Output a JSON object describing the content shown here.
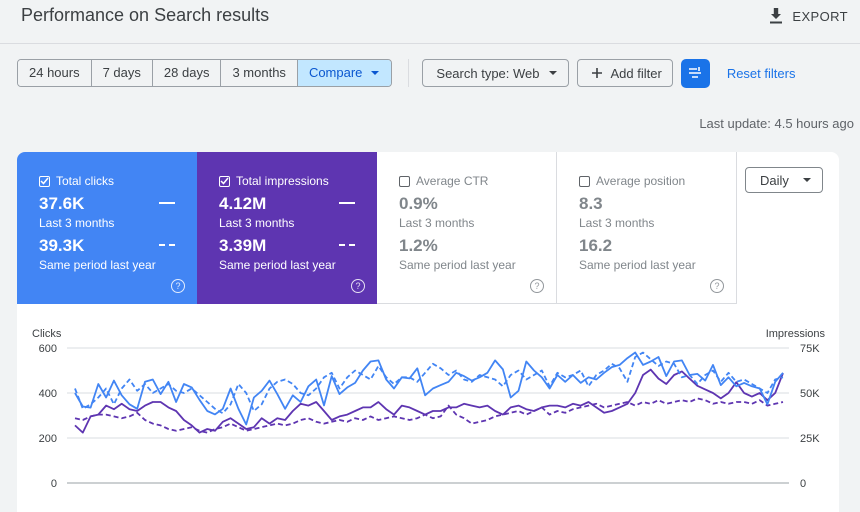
{
  "header": {
    "title": "Performance on Search results",
    "export_label": "EXPORT"
  },
  "toolbar": {
    "ranges": [
      "24 hours",
      "7 days",
      "28 days",
      "3 months"
    ],
    "compare_label": "Compare",
    "search_type_label": "Search type: Web",
    "add_filter_label": "Add filter",
    "reset_filters_label": "Reset filters"
  },
  "last_update": "Last update: 4.5 hours ago",
  "metrics": {
    "clicks": {
      "label": "Total clicks",
      "value": "37.6K",
      "period": "Last 3 months",
      "compare_value": "39.3K",
      "compare_period": "Same period last year",
      "color": "#4285f4"
    },
    "impressions": {
      "label": "Total impressions",
      "value": "4.12M",
      "period": "Last 3 months",
      "compare_value": "3.39M",
      "compare_period": "Same period last year",
      "color": "#5e35b1"
    },
    "ctr": {
      "label": "Average CTR",
      "value": "0.9%",
      "period": "Last 3 months",
      "compare_value": "1.2%",
      "compare_period": "Same period last year"
    },
    "position": {
      "label": "Average position",
      "value": "8.3",
      "period": "Last 3 months",
      "compare_value": "16.2",
      "compare_period": "Same period last year"
    }
  },
  "granularity": "Daily",
  "help_glyph": "?",
  "chart_data": {
    "type": "line",
    "ylabel_left": "Clicks",
    "ylabel_right": "Impressions",
    "yticks_left": [
      "0",
      "200",
      "400",
      "600"
    ],
    "yticks_right": [
      "0",
      "25K",
      "50K",
      "75K"
    ],
    "ylim_left": [
      0,
      600
    ],
    "ylim_right": [
      0,
      75000
    ],
    "grid": true,
    "series": [
      {
        "axis": "left",
        "style": "solid",
        "color": "#4285f4",
        "values": [
          400,
          340,
          335,
          440,
          380,
          455,
          390,
          350,
          330,
          450,
          460,
          395,
          450,
          360,
          440,
          425,
          370,
          320,
          305,
          330,
          420,
          330,
          260,
          380,
          410,
          455,
          395,
          330,
          390,
          360,
          430,
          460,
          345,
          475,
          395,
          425,
          445,
          500,
          540,
          545,
          460,
          420,
          470,
          465,
          510,
          390,
          420,
          435,
          450,
          490,
          475,
          455,
          470,
          490,
          545,
          505,
          380,
          410,
          540,
          500,
          470,
          420,
          480,
          450,
          480,
          445,
          470,
          460,
          490,
          515,
          525,
          555,
          580,
          525,
          540,
          560,
          475,
          540,
          545,
          480,
          485,
          455,
          525,
          435,
          470,
          430,
          445,
          430,
          420,
          350,
          450,
          490
        ]
      },
      {
        "axis": "left",
        "style": "dashed",
        "color": "#4285f4",
        "values": [
          420,
          330,
          350,
          380,
          420,
          350,
          420,
          460,
          410,
          440,
          400,
          420,
          440,
          410,
          400,
          420,
          390,
          360,
          330,
          310,
          350,
          440,
          400,
          320,
          350,
          420,
          450,
          460,
          440,
          400,
          390,
          420,
          470,
          490,
          420,
          470,
          500,
          480,
          460,
          520,
          470,
          440,
          470,
          470,
          450,
          490,
          530,
          510,
          480,
          500,
          460,
          450,
          480,
          470,
          460,
          430,
          480,
          500,
          460,
          480,
          500,
          430,
          490,
          470,
          480,
          500,
          430,
          480,
          500,
          530,
          510,
          450,
          560,
          580,
          550,
          520,
          540,
          530,
          470,
          480,
          440,
          480,
          500,
          450,
          490,
          450,
          460,
          440,
          420,
          400,
          460,
          470
        ]
      },
      {
        "axis": "right",
        "style": "solid",
        "color": "#5e35b1",
        "values": [
          32000,
          28000,
          37000,
          38000,
          43000,
          41000,
          44000,
          41000,
          40000,
          43000,
          45000,
          45000,
          42000,
          40000,
          35000,
          32000,
          28000,
          30000,
          29000,
          34000,
          36000,
          33000,
          30000,
          31000,
          36000,
          33000,
          36000,
          35000,
          40000,
          44000,
          43000,
          45000,
          40000,
          35000,
          37000,
          38000,
          40000,
          42000,
          42000,
          45000,
          41000,
          38000,
          43000,
          42000,
          40000,
          38000,
          40000,
          40000,
          42000,
          42000,
          44000,
          43000,
          42000,
          43000,
          40000,
          38000,
          42000,
          43000,
          41000,
          40000,
          42000,
          43000,
          43000,
          42000,
          44000,
          43000,
          45000,
          42000,
          39000,
          40000,
          42000,
          44000,
          50000,
          60000,
          63000,
          58000,
          55000,
          60000,
          62000,
          58000,
          54000,
          52000,
          50000,
          47000,
          50000,
          56000,
          50000,
          48000,
          50000,
          46000,
          50000,
          61000
        ]
      },
      {
        "axis": "right",
        "style": "dashed",
        "color": "#5e35b1",
        "values": [
          36000,
          35000,
          37000,
          38000,
          38000,
          37000,
          36000,
          37000,
          39000,
          35000,
          33000,
          32000,
          30000,
          29000,
          30000,
          31000,
          29000,
          28000,
          30000,
          31000,
          33000,
          31000,
          29000,
          30000,
          31000,
          32000,
          33000,
          32000,
          33000,
          35000,
          36000,
          34000,
          33000,
          34000,
          35000,
          34000,
          36000,
          35000,
          37000,
          35000,
          36000,
          37000,
          36000,
          35000,
          36000,
          38000,
          36000,
          37000,
          43000,
          38000,
          36000,
          33000,
          34000,
          35000,
          37000,
          38000,
          39000,
          40000,
          38000,
          40000,
          42000,
          38000,
          40000,
          39000,
          41000,
          42000,
          43000,
          44000,
          42000,
          43000,
          44000,
          45000,
          43000,
          45000,
          44000,
          46000,
          44000,
          45000,
          46000,
          45000,
          47000,
          46000,
          44000,
          45000,
          44000,
          45000,
          45000,
          44000,
          46000,
          43000,
          44000,
          45000
        ]
      }
    ]
  }
}
